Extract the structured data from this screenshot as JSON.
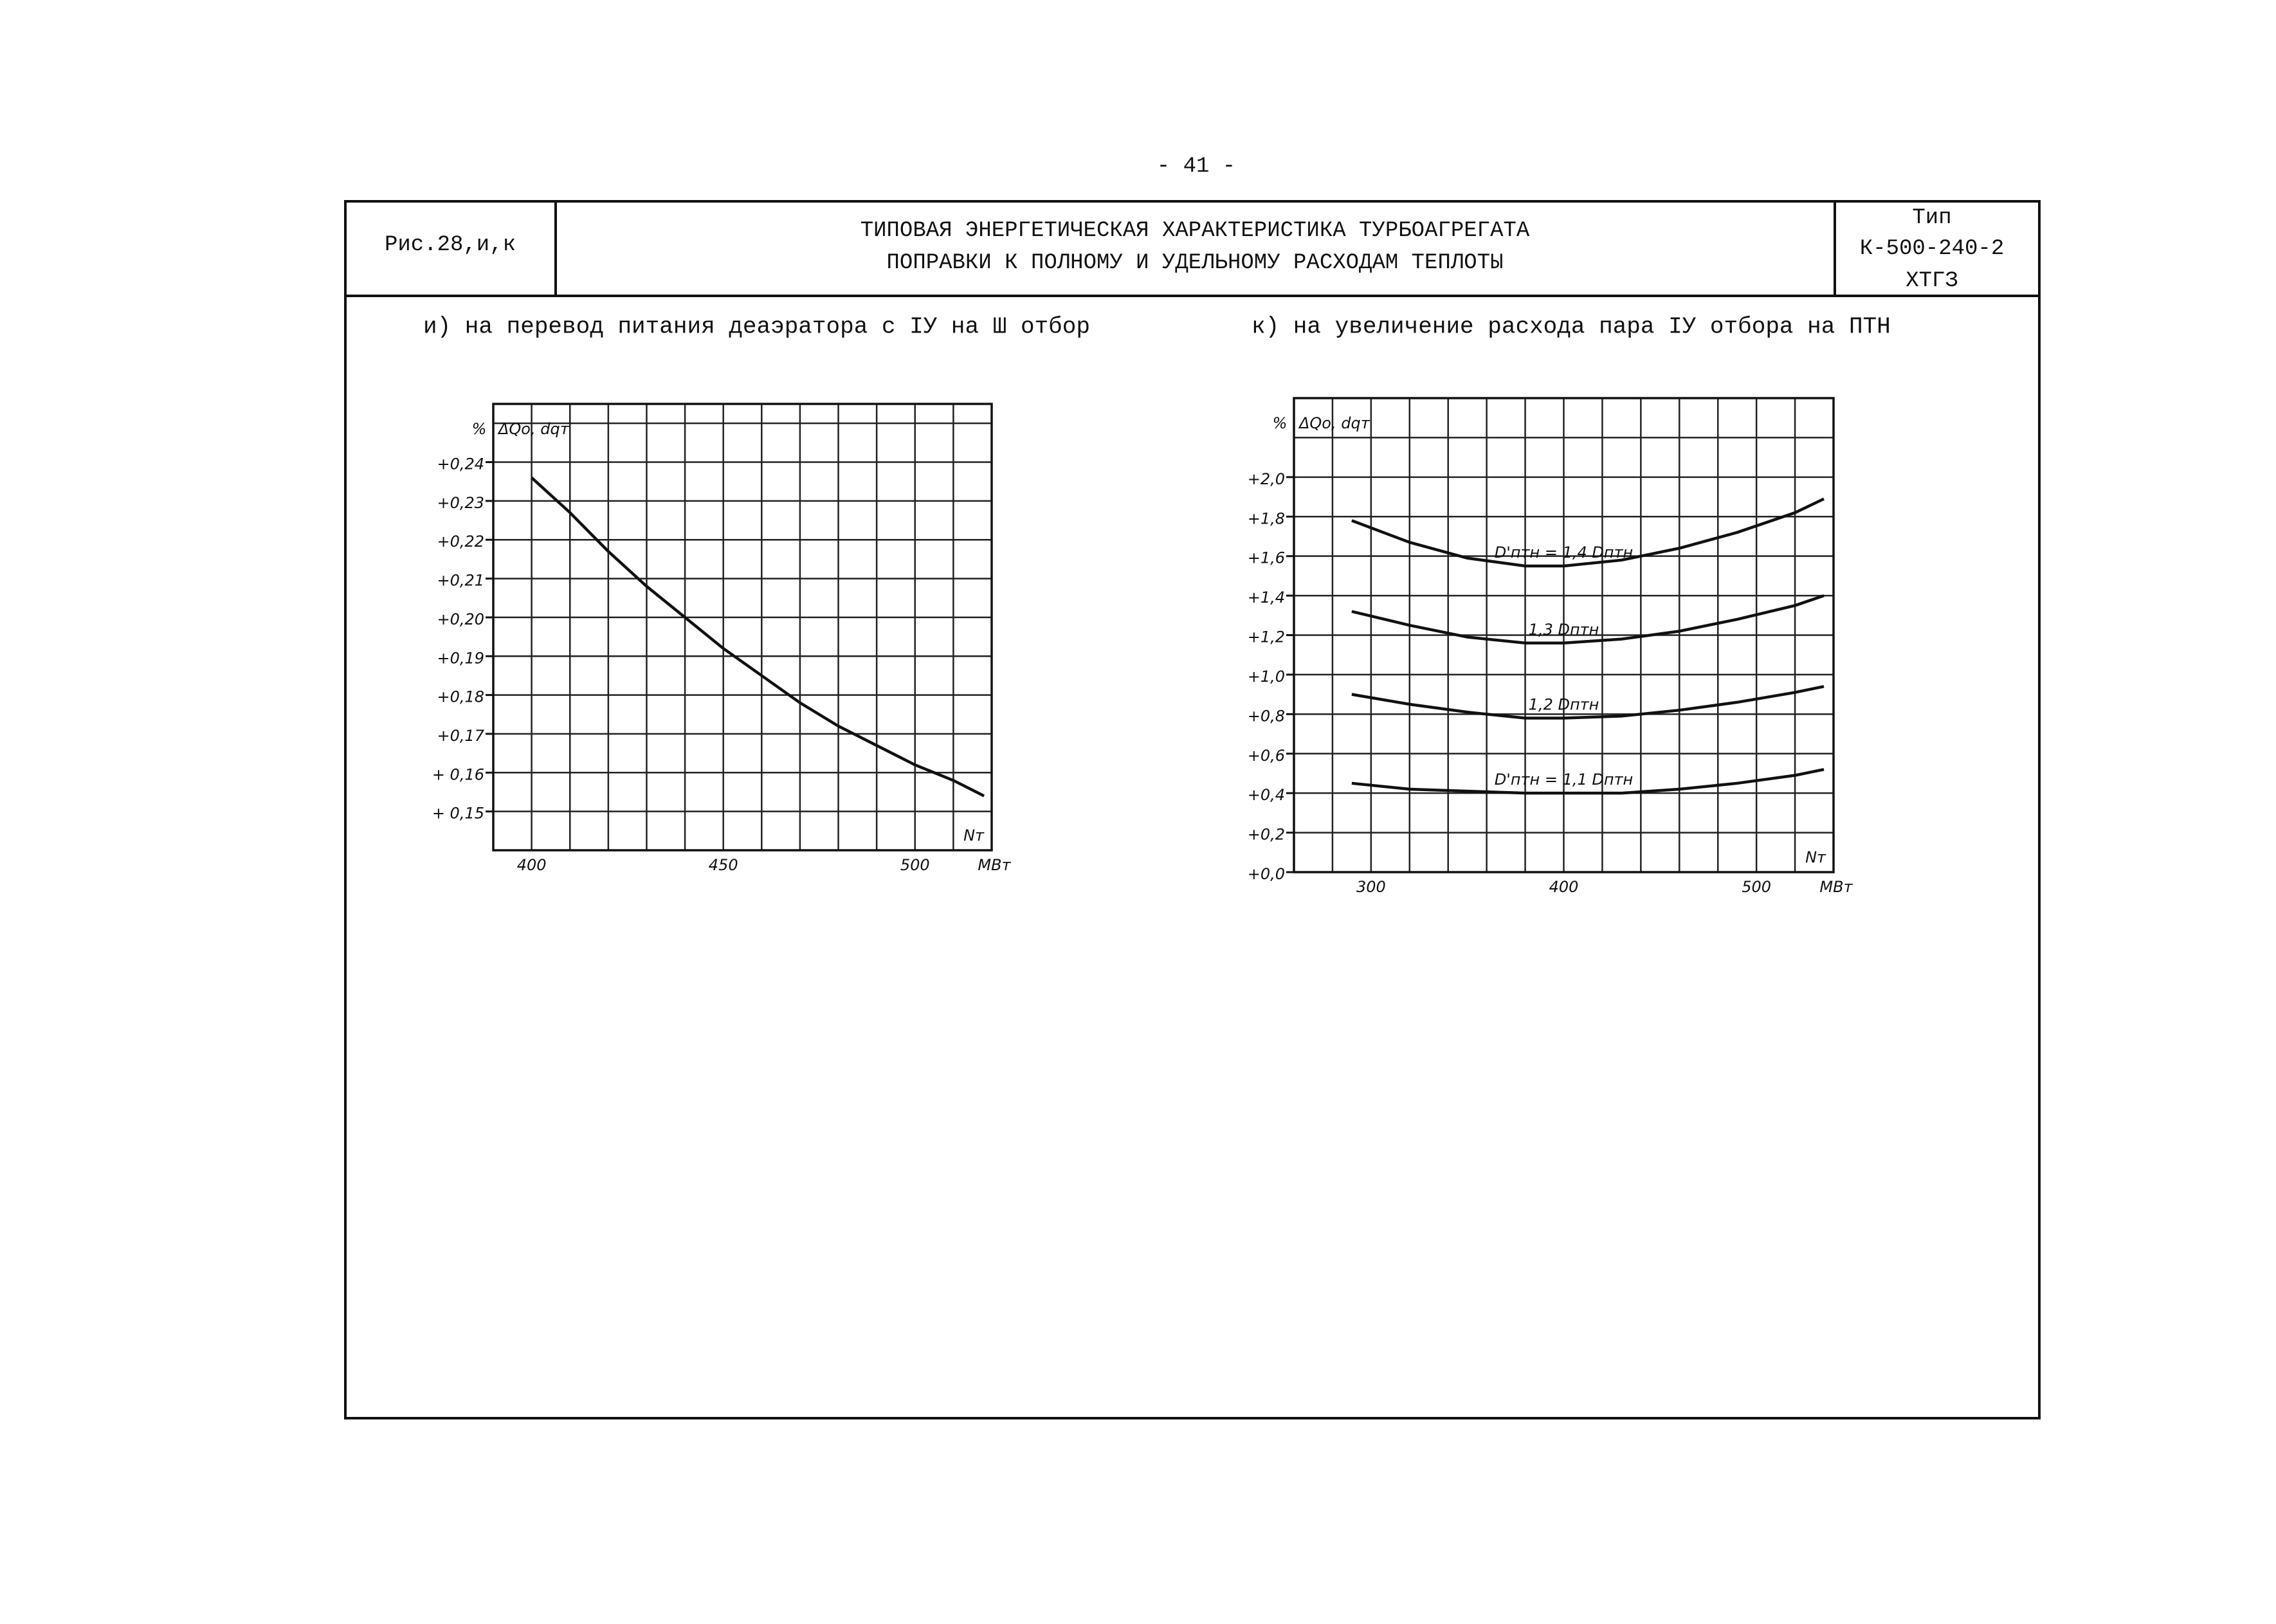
{
  "page_number": "- 41 -",
  "header": {
    "figure": "Рис.28,и,к",
    "title_lines": [
      "ТИПОВАЯ ЭНЕРГЕТИЧЕСКАЯ ХАРАКТЕРИСТИКА ТУРБОАГРЕГАТА",
      "ПОПРАВКИ К ПОЛНОМУ И УДЕЛЬНОМУ РАСХОДАМ ТЕПЛОТЫ"
    ],
    "type_lines": [
      "Тип",
      "К-500-240-2",
      "ХТГЗ"
    ]
  },
  "chart_data": [
    {
      "type": "line",
      "title": "и) на перевод питания деаэратора с IУ на Ш отбор",
      "y_label": "%",
      "y_quantity": "ΔQo, dqт",
      "x_label": "Nт",
      "x_unit": "MBт",
      "x": [
        400,
        410,
        420,
        430,
        440,
        450,
        460,
        470,
        480,
        490,
        500,
        510,
        518
      ],
      "series": [
        {
          "color": "#111111",
          "values": [
            0.236,
            0.227,
            0.217,
            0.208,
            0.2,
            0.192,
            0.185,
            0.178,
            0.172,
            0.167,
            0.162,
            0.158,
            0.154
          ]
        }
      ],
      "xlim": [
        390,
        520
      ],
      "ylim": [
        0.14,
        0.255
      ],
      "xticks": [
        400,
        450,
        500
      ],
      "yticks": [
        {
          "value": 0.15,
          "label": "+ 0,15"
        },
        {
          "value": 0.16,
          "label": "+ 0,16"
        },
        {
          "value": 0.17,
          "label": "+0,17"
        },
        {
          "value": 0.18,
          "label": "+0,18"
        },
        {
          "value": 0.19,
          "label": "+0,19"
        },
        {
          "value": 0.2,
          "label": "+0,20"
        },
        {
          "value": 0.21,
          "label": "+0,21"
        },
        {
          "value": 0.22,
          "label": "+0,22"
        },
        {
          "value": 0.23,
          "label": "+0,23"
        },
        {
          "value": 0.24,
          "label": "+0,24"
        }
      ],
      "xgrid": [
        400,
        410,
        420,
        430,
        440,
        450,
        460,
        470,
        480,
        490,
        500,
        510
      ],
      "ygrid": [
        0.15,
        0.16,
        0.17,
        0.18,
        0.19,
        0.2,
        0.21,
        0.22,
        0.23,
        0.24,
        0.25
      ]
    },
    {
      "type": "line",
      "title": "к) на увеличение расхода пара IУ отбора на ПТН",
      "y_label": "%",
      "y_quantity": "ΔQo, dqт",
      "x_label": "Nт",
      "x_unit": "MBт",
      "x": [
        290,
        320,
        350,
        380,
        400,
        430,
        460,
        490,
        520,
        535
      ],
      "series": [
        {
          "name": "D'птн = 1,4 Dптн",
          "color": "#111111",
          "values": [
            1.78,
            1.67,
            1.59,
            1.55,
            1.55,
            1.58,
            1.64,
            1.72,
            1.82,
            1.89
          ]
        },
        {
          "name": "1,3 Dптн",
          "color": "#111111",
          "values": [
            1.32,
            1.25,
            1.19,
            1.16,
            1.16,
            1.18,
            1.22,
            1.28,
            1.35,
            1.4
          ]
        },
        {
          "name": "1,2 Dптн",
          "color": "#111111",
          "values": [
            0.9,
            0.85,
            0.81,
            0.78,
            0.78,
            0.79,
            0.82,
            0.86,
            0.91,
            0.94
          ]
        },
        {
          "name": "D'птн = 1,1 Dптн",
          "color": "#111111",
          "values": [
            0.45,
            0.42,
            0.41,
            0.4,
            0.4,
            0.4,
            0.42,
            0.45,
            0.49,
            0.52
          ]
        }
      ],
      "xlim": [
        260,
        540
      ],
      "ylim": [
        0,
        2.4
      ],
      "xticks": [
        300,
        400,
        500
      ],
      "yticks": [
        {
          "value": 0,
          "label": "+0,0"
        },
        {
          "value": 0.2,
          "label": "+0,2"
        },
        {
          "value": 0.4,
          "label": "+0,4"
        },
        {
          "value": 0.6,
          "label": "+0,6"
        },
        {
          "value": 0.8,
          "label": "+0,8"
        },
        {
          "value": 1.0,
          "label": "+1,0"
        },
        {
          "value": 1.2,
          "label": "+1,2"
        },
        {
          "value": 1.4,
          "label": "+1,4"
        },
        {
          "value": 1.6,
          "label": "+1,6"
        },
        {
          "value": 1.8,
          "label": "+1,8"
        },
        {
          "value": 2.0,
          "label": "+2,0"
        }
      ],
      "xgrid": [
        280,
        300,
        320,
        340,
        360,
        380,
        400,
        420,
        440,
        460,
        480,
        500,
        520
      ],
      "ygrid": [
        0.2,
        0.4,
        0.6,
        0.8,
        1.0,
        1.2,
        1.4,
        1.6,
        1.8,
        2.0,
        2.2
      ]
    }
  ]
}
